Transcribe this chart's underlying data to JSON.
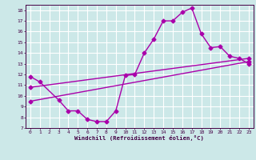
{
  "xlabel": "Windchill (Refroidissement éolien,°C)",
  "background_color": "#cce8e8",
  "line_color": "#aa00aa",
  "grid_color": "#ffffff",
  "xlim": [
    -0.5,
    23.5
  ],
  "ylim": [
    7,
    18.5
  ],
  "xticks": [
    0,
    1,
    2,
    3,
    4,
    5,
    6,
    7,
    8,
    9,
    10,
    11,
    12,
    13,
    14,
    15,
    16,
    17,
    18,
    19,
    20,
    21,
    22,
    23
  ],
  "yticks": [
    7,
    8,
    9,
    10,
    11,
    12,
    13,
    14,
    15,
    16,
    17,
    18
  ],
  "line1_x": [
    0,
    1,
    3,
    4,
    5,
    6,
    7,
    8,
    9,
    10,
    11,
    12,
    13,
    14,
    15,
    16,
    17,
    18,
    19,
    20,
    21,
    22,
    23
  ],
  "line1_y": [
    11.8,
    11.3,
    9.6,
    8.6,
    8.6,
    7.8,
    7.6,
    7.6,
    8.6,
    11.9,
    12.0,
    14.0,
    15.3,
    17.0,
    17.0,
    17.8,
    18.2,
    15.8,
    14.5,
    14.6,
    13.7,
    13.5,
    13.0
  ],
  "line2_x": [
    0,
    23
  ],
  "line2_y": [
    9.5,
    13.2
  ],
  "line3_x": [
    0,
    23
  ],
  "line3_y": [
    10.8,
    13.5
  ],
  "marker": "D",
  "markersize": 2.5,
  "linewidth": 1.0
}
